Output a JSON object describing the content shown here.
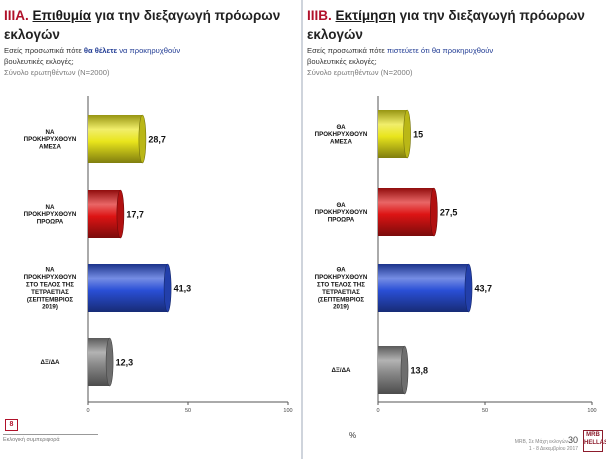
{
  "left": {
    "title_num": "IIIA.",
    "title_u": "Επιθυμία",
    "title_rest": "για την διεξαγωγή πρόωρων εκλογών",
    "sub1_a": "Εσείς προσωπικά πότε ",
    "sub1_b": "θα θέλετε",
    "sub1_c": " να προκηρυχθούν",
    "sub2": "βουλευτικές εκλογές;",
    "sub3": "Σύνολο ερωτηθέντων (Ν=2000)",
    "page_number": "8",
    "footer_note": "Εκλογική συμπεριφορά"
  },
  "right": {
    "title_num": "IIIB.",
    "title_u": "Εκτίμηση",
    "title_rest": "για την διεξαγωγή πρόωρων εκλογών",
    "sub1_a": "Εσείς προσωπικά πότε ",
    "sub1_b": "πιστεύετε ότι θα προκηρυχθούν",
    "sub2": "βουλευτικές εκλογές;",
    "sub3": "Σύνολο ερωτηθέντων (Ν=2000)",
    "percent_label": "%",
    "mrb_line1": "MRB, Σε Μάχη εκλογών",
    "mrb_page": "30",
    "mrb_line2": "1 - 8 Δεκεμβρίου 2017",
    "logo_text": "MRB HELLAS"
  },
  "colors": {
    "yellow": "#e9e51c",
    "red": "#dd1414",
    "blue": "#2a4fd6",
    "gray": "#8a8a8a"
  },
  "chart_data": [
    {
      "type": "bar",
      "orientation": "horizontal",
      "categories": [
        "ΝΑ ΠΡΟΚΗΡΥΧΘΟΥΝ ΑΜΕΣΑ",
        "ΝΑ ΠΡΟΚΗΡΥΧΘΟΥΝ ΠΡΟΩΡΑ",
        "ΝΑ ΠΡΟΚΗΡΥΧΘΟΥΝ ΣΤΟ ΤΕΛΟΣ ΤΗΣ ΤΕΤΡΑΕΤΙΑΣ (ΣΕΠΤΕΜΒΡΙΟΣ 2019)",
        "ΔΞ/ΔΑ"
      ],
      "category_lines": [
        [
          "ΝΑ",
          "ΠΡΟΚΗΡΥΧΘΟΥΝ",
          "ΑΜΕΣΑ"
        ],
        [
          "ΝΑ",
          "ΠΡΟΚΗΡΥΧΘΟΥΝ",
          "ΠΡΟΩΡΑ"
        ],
        [
          "ΝΑ",
          "ΠΡΟΚΗΡΥΧΘΟΥΝ",
          "ΣΤΟ ΤΕΛΟΣ ΤΗΣ",
          "ΤΕΤΡΑΕΤΙΑΣ",
          "(ΣΕΠΤΕΜΒΡΙΟΣ",
          "2019)"
        ],
        [
          "ΔΞ/ΔΑ"
        ]
      ],
      "values": [
        28.7,
        17.7,
        41.3,
        12.3
      ],
      "value_labels": [
        "28,7",
        "17,7",
        "41,3",
        "12,3"
      ],
      "bar_colors": [
        "#e9e51c",
        "#dd1414",
        "#2a4fd6",
        "#8a8a8a"
      ],
      "xlim": [
        0,
        100
      ],
      "xticks": [
        "0",
        "50",
        "100"
      ],
      "grid": false
    },
    {
      "type": "bar",
      "orientation": "horizontal",
      "categories": [
        "ΘΑ ΠΡΟΚΗΡΥΧΘΟΥΝ ΑΜΕΣΑ",
        "ΘΑ ΠΡΟΚΗΡΥΧΘΟΥΝ ΠΡΟΩΡΑ",
        "ΘΑ ΠΡΟΚΗΡΥΧΘΟΥΝ ΣΤΟ ΤΕΛΟΣ ΤΗΣ ΤΕΤΡΑΕΤΙΑΣ (ΣΕΠΤΕΜΒΡΙΟΣ 2019)",
        "ΔΞ/ΔΑ"
      ],
      "category_lines": [
        [
          "ΘΑ",
          "ΠΡΟΚΗΡΥΧΘΟΥΝ",
          "ΑΜΕΣΑ"
        ],
        [
          "ΘΑ",
          "ΠΡΟΚΗΡΥΧΘΟΥΝ",
          "ΠΡΟΩΡΑ"
        ],
        [
          "ΘΑ",
          "ΠΡΟΚΗΡΥΧΘΟΥΝ",
          "ΣΤΟ ΤΕΛΟΣ ΤΗΣ",
          "ΤΕΤΡΑΕΤΙΑΣ",
          "(ΣΕΠΤΕΜΒΡΙΟΣ",
          "2019)"
        ],
        [
          "ΔΞ/ΔΑ"
        ]
      ],
      "values": [
        15,
        27.5,
        43.7,
        13.8
      ],
      "value_labels": [
        "15",
        "27,5",
        "43,7",
        "13,8"
      ],
      "bar_colors": [
        "#e9e51c",
        "#dd1414",
        "#2a4fd6",
        "#8a8a8a"
      ],
      "xlim": [
        0,
        100
      ],
      "xticks": [
        "0",
        "50",
        "100"
      ],
      "grid": false
    }
  ]
}
